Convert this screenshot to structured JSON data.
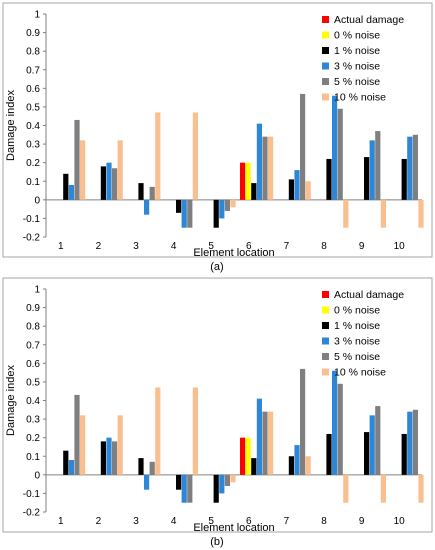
{
  "colors": {
    "Actual damage": "#ff0000",
    "0 % noise": "#ffff00",
    "1 % noise": "#000000",
    "3 % noise": "#2e86d6",
    "5 % noise": "#7f7f7f",
    "10 % noise": "#fabf8f",
    "frame": "#a6a6a6",
    "grid": "#d9d9d9"
  },
  "chart_data": [
    {
      "type": "bar",
      "caption": "(a)",
      "xlabel": "Element location",
      "ylabel": "Damage index",
      "ylim": [
        -0.2,
        1.0
      ],
      "yticks": [
        "-0.2",
        "-0.1",
        "0",
        "0.1",
        "0.2",
        "0.3",
        "0.4",
        "0.5",
        "0.6",
        "0.7",
        "0.8",
        "0.9",
        "1"
      ],
      "grid": false,
      "legend_position": "top-right",
      "categories": [
        "1",
        "2",
        "3",
        "4",
        "5",
        "6",
        "7",
        "8",
        "9",
        "10"
      ],
      "series": [
        {
          "name": "Actual damage",
          "values": [
            0,
            0,
            0,
            0,
            0,
            0.2,
            0,
            0,
            0,
            0
          ]
        },
        {
          "name": "0 % noise",
          "values": [
            0,
            0,
            0,
            0,
            0,
            0.2,
            0,
            0,
            0,
            0
          ]
        },
        {
          "name": "1 % noise",
          "values": [
            0.14,
            0.18,
            0.09,
            -0.07,
            -0.15,
            0.09,
            0.11,
            0.22,
            0.23,
            0.22
          ]
        },
        {
          "name": "3 % noise",
          "values": [
            0.08,
            0.2,
            -0.08,
            -0.15,
            -0.1,
            0.41,
            0.16,
            0.56,
            0.32,
            0.34
          ]
        },
        {
          "name": "5 % noise",
          "values": [
            0.43,
            0.17,
            0.07,
            -0.15,
            -0.06,
            0.34,
            0.57,
            0.49,
            0.37,
            0.35
          ]
        },
        {
          "name": "10 % noise",
          "values": [
            0.32,
            0.32,
            0.47,
            0.47,
            -0.04,
            0.34,
            0.1,
            -0.15,
            -0.15,
            -0.15
          ]
        }
      ]
    },
    {
      "type": "bar",
      "caption": "(b)",
      "xlabel": "Element location",
      "ylabel": "Damage index",
      "ylim": [
        -0.2,
        1.0
      ],
      "yticks": [
        "-0.2",
        "-0.1",
        "0",
        "0.1",
        "0.2",
        "0.3",
        "0.4",
        "0.5",
        "0.6",
        "0.7",
        "0.8",
        "0.9",
        "1"
      ],
      "grid": false,
      "legend_position": "top-right",
      "categories": [
        "1",
        "2",
        "3",
        "4",
        "5",
        "6",
        "7",
        "8",
        "9",
        "10"
      ],
      "series": [
        {
          "name": "Actual damage",
          "values": [
            0,
            0,
            0,
            0,
            0,
            0.2,
            0,
            0,
            0,
            0
          ]
        },
        {
          "name": "0 % noise",
          "values": [
            0,
            0,
            0,
            0,
            0,
            0.2,
            0,
            0,
            0,
            0
          ]
        },
        {
          "name": "1 % noise",
          "values": [
            0.13,
            0.18,
            0.09,
            -0.08,
            -0.15,
            0.09,
            0.1,
            0.22,
            0.23,
            0.22
          ]
        },
        {
          "name": "3 % noise",
          "values": [
            0.08,
            0.2,
            -0.08,
            -0.15,
            -0.1,
            0.41,
            0.16,
            0.56,
            0.32,
            0.34
          ]
        },
        {
          "name": "5 % noise",
          "values": [
            0.43,
            0.18,
            0.07,
            -0.15,
            -0.06,
            0.34,
            0.57,
            0.49,
            0.37,
            0.35
          ]
        },
        {
          "name": "10 % noise",
          "values": [
            0.32,
            0.32,
            0.47,
            0.47,
            -0.04,
            0.34,
            0.1,
            -0.15,
            -0.15,
            -0.15
          ]
        }
      ]
    }
  ]
}
